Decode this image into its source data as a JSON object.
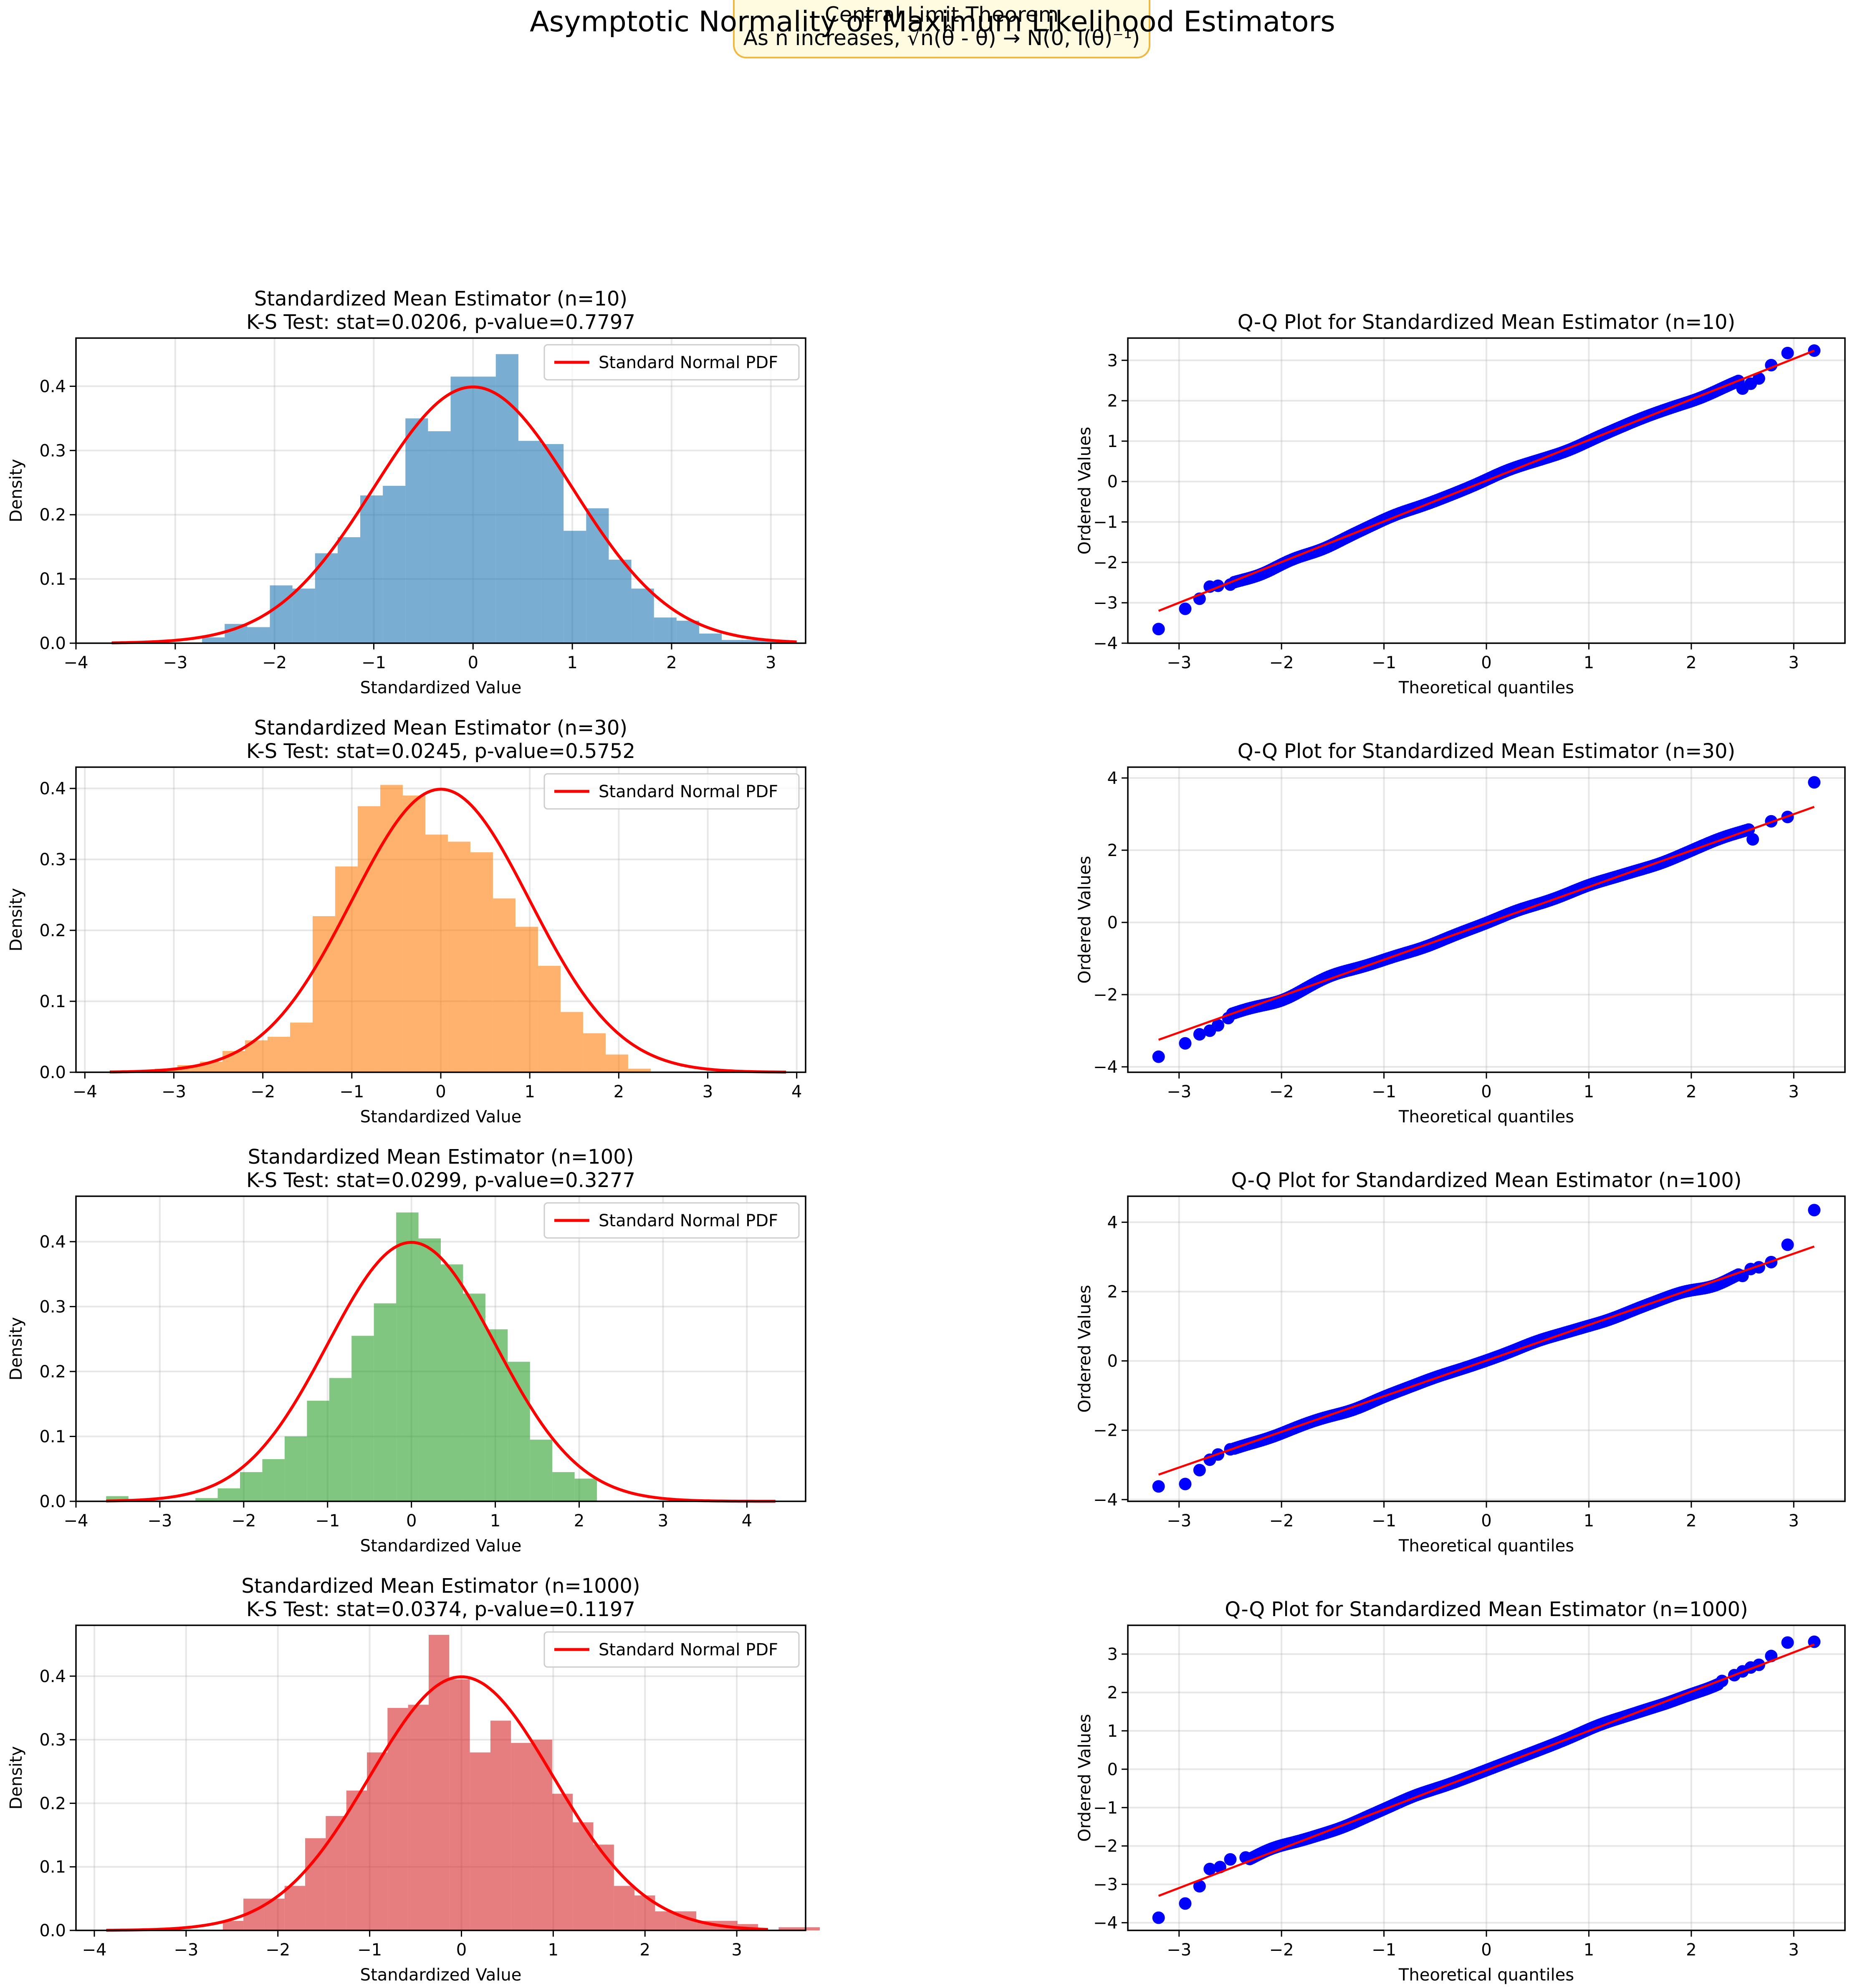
{
  "figure": {
    "suptitle": "Asymptotic Normality of Maximum Likelihood Estimators",
    "annotation_line1": "Central Limit Theorem",
    "annotation_line2": "As n increases, √n(θ̂ - θ) → N(0, I(θ)⁻¹)",
    "annotation_bg": "#fffbe0",
    "annotation_border": "#f0b840"
  },
  "chart_data": [
    {
      "type": "bar",
      "title_line1": "Standardized Mean Estimator (n=10)",
      "title_line2": "K-S Test: stat=0.0206, p-value=0.7797",
      "xlabel": "Standardized Value",
      "ylabel": "Density",
      "xlim": [
        -4.0,
        3.35
      ],
      "ylim": [
        0,
        0.475
      ],
      "xticks": [
        -4,
        -3,
        -2,
        -1,
        0,
        1,
        2,
        3
      ],
      "yticks": [
        0.0,
        0.1,
        0.2,
        0.3,
        0.4
      ],
      "bin_start": -3.64,
      "bin_width": 0.2276,
      "densities": [
        0.0,
        0.0,
        0.0,
        0.0,
        0.009,
        0.03,
        0.025,
        0.09,
        0.085,
        0.14,
        0.165,
        0.23,
        0.245,
        0.35,
        0.33,
        0.415,
        0.415,
        0.45,
        0.315,
        0.31,
        0.175,
        0.21,
        0.13,
        0.085,
        0.04,
        0.035,
        0.015,
        0.005,
        0.005,
        0.005
      ],
      "curve_range": [
        -3.64,
        3.26
      ],
      "bar_color": "#1f77b4",
      "curve_color": "#ff0000",
      "legend": "Standard Normal PDF",
      "legend_position": "upper right",
      "grid": true
    },
    {
      "type": "scatter",
      "title": "Q-Q Plot for Standardized Mean Estimator (n=10)",
      "xlabel": "Theoretical quantiles",
      "ylabel": "Ordered Values",
      "xlim": [
        -3.5,
        3.5
      ],
      "ylim": [
        -4.0,
        3.55
      ],
      "xticks": [
        -3,
        -2,
        -1,
        0,
        1,
        2,
        3
      ],
      "yticks": [
        -4,
        -3,
        -2,
        -1,
        0,
        1,
        2,
        3
      ],
      "fit_line": [
        [
          -3.2,
          -3.2
        ],
        [
          3.2,
          3.24
        ]
      ],
      "tail_low": [
        [
          -3.2,
          -3.65
        ],
        [
          -2.94,
          -3.15
        ],
        [
          -2.8,
          -2.9
        ],
        [
          -2.7,
          -2.6
        ],
        [
          -2.62,
          -2.58
        ],
        [
          -2.5,
          -2.55
        ]
      ],
      "tail_high": [
        [
          2.5,
          2.3
        ],
        [
          2.58,
          2.42
        ],
        [
          2.66,
          2.55
        ],
        [
          2.78,
          2.88
        ],
        [
          2.94,
          3.18
        ],
        [
          3.2,
          3.24
        ]
      ],
      "wiggles": [
        [
          -2.2,
          -0.1
        ],
        [
          -1.6,
          -0.08
        ],
        [
          -0.9,
          0.05
        ],
        [
          0.2,
          0.05
        ],
        [
          0.8,
          -0.05
        ],
        [
          1.5,
          0.02
        ],
        [
          2.1,
          -0.05
        ]
      ],
      "marker_color": "#0000ff",
      "line_color": "#ff0000",
      "grid": true
    },
    {
      "type": "bar",
      "title_line1": "Standardized Mean Estimator (n=30)",
      "title_line2": "K-S Test: stat=0.0245, p-value=0.5752",
      "xlabel": "Standardized Value",
      "ylabel": "Density",
      "xlim": [
        -4.1,
        4.1
      ],
      "ylim": [
        0,
        0.43
      ],
      "xticks": [
        -4,
        -3,
        -2,
        -1,
        0,
        1,
        2,
        3,
        4
      ],
      "yticks": [
        0.0,
        0.1,
        0.2,
        0.3,
        0.4
      ],
      "bin_start": -3.72,
      "bin_width": 0.2533,
      "densities": [
        0.0,
        0.0,
        0.005,
        0.01,
        0.015,
        0.03,
        0.045,
        0.05,
        0.07,
        0.22,
        0.29,
        0.375,
        0.405,
        0.39,
        0.335,
        0.325,
        0.31,
        0.245,
        0.205,
        0.15,
        0.085,
        0.055,
        0.025,
        0.005,
        0.0,
        0.0,
        0.0,
        0.0,
        0.0,
        0.002
      ],
      "curve_range": [
        -3.72,
        3.88
      ],
      "bar_color": "#ff7f0e",
      "curve_color": "#ff0000",
      "legend": "Standard Normal PDF",
      "legend_position": "upper right",
      "grid": true
    },
    {
      "type": "scatter",
      "title": "Q-Q Plot for Standardized Mean Estimator (n=30)",
      "xlabel": "Theoretical quantiles",
      "ylabel": "Ordered Values",
      "xlim": [
        -3.5,
        3.5
      ],
      "ylim": [
        -4.15,
        4.3
      ],
      "xticks": [
        -3,
        -2,
        -1,
        0,
        1,
        2,
        3
      ],
      "yticks": [
        -4,
        -2,
        0,
        2,
        4
      ],
      "fit_line": [
        [
          -3.2,
          -3.25
        ],
        [
          3.2,
          3.2
        ]
      ],
      "tail_low": [
        [
          -3.2,
          -3.72
        ],
        [
          -2.94,
          -3.35
        ],
        [
          -2.8,
          -3.1
        ],
        [
          -2.7,
          -3.0
        ],
        [
          -2.62,
          -2.85
        ],
        [
          -2.52,
          -2.65
        ]
      ],
      "tail_high": [
        [
          2.6,
          2.3
        ],
        [
          2.78,
          2.8
        ],
        [
          2.94,
          2.92
        ],
        [
          3.2,
          3.88
        ]
      ],
      "wiggles": [
        [
          -2.0,
          -0.12
        ],
        [
          -1.5,
          0.08
        ],
        [
          -0.6,
          -0.05
        ],
        [
          0.3,
          0.05
        ],
        [
          1.0,
          0.05
        ],
        [
          1.7,
          -0.05
        ],
        [
          2.3,
          0.05
        ]
      ],
      "marker_color": "#0000ff",
      "line_color": "#ff0000",
      "grid": true
    },
    {
      "type": "bar",
      "title_line1": "Standardized Mean Estimator (n=100)",
      "title_line2": "K-S Test: stat=0.0299, p-value=0.3277",
      "xlabel": "Standardized Value",
      "ylabel": "Density",
      "xlim": [
        -4.0,
        4.7
      ],
      "ylim": [
        0,
        0.47
      ],
      "xticks": [
        -4,
        -3,
        -2,
        -1,
        0,
        1,
        2,
        3,
        4
      ],
      "yticks": [
        0.0,
        0.1,
        0.2,
        0.3,
        0.4
      ],
      "bin_start": -3.64,
      "bin_width": 0.266,
      "densities": [
        0.008,
        0.0,
        0.0,
        0.0,
        0.005,
        0.02,
        0.045,
        0.065,
        0.1,
        0.155,
        0.19,
        0.255,
        0.305,
        0.445,
        0.405,
        0.365,
        0.32,
        0.265,
        0.215,
        0.095,
        0.045,
        0.035,
        0.0,
        0.0,
        0.0,
        0.0,
        0.0,
        0.0,
        0.0,
        0.0
      ],
      "curve_range": [
        -3.64,
        4.34
      ],
      "bar_color": "#2ca02c",
      "curve_color": "#ff0000",
      "legend": "Standard Normal PDF",
      "legend_position": "upper right",
      "grid": true
    },
    {
      "type": "scatter",
      "title": "Q-Q Plot for Standardized Mean Estimator (n=100)",
      "xlabel": "Theoretical quantiles",
      "ylabel": "Ordered Values",
      "xlim": [
        -3.5,
        3.5
      ],
      "ylim": [
        -4.05,
        4.75
      ],
      "xticks": [
        -3,
        -2,
        -1,
        0,
        1,
        2,
        3
      ],
      "yticks": [
        -4,
        -2,
        0,
        2,
        4
      ],
      "fit_line": [
        [
          -3.2,
          -3.28
        ],
        [
          3.2,
          3.3
        ]
      ],
      "tail_low": [
        [
          -3.2,
          -3.62
        ],
        [
          -2.94,
          -3.55
        ],
        [
          -2.8,
          -3.15
        ],
        [
          -2.7,
          -2.85
        ],
        [
          -2.62,
          -2.7
        ],
        [
          -2.5,
          -2.55
        ]
      ],
      "tail_high": [
        [
          2.5,
          2.45
        ],
        [
          2.58,
          2.65
        ],
        [
          2.66,
          2.7
        ],
        [
          2.78,
          2.85
        ],
        [
          2.94,
          3.35
        ],
        [
          3.2,
          4.35
        ]
      ],
      "wiggles": [
        [
          -2.1,
          -0.05
        ],
        [
          -1.3,
          -0.08
        ],
        [
          -0.5,
          0.03
        ],
        [
          0.5,
          0.05
        ],
        [
          1.2,
          -0.05
        ],
        [
          2.0,
          0.05
        ],
        [
          2.2,
          -0.15
        ]
      ],
      "marker_color": "#0000ff",
      "line_color": "#ff0000",
      "grid": true
    },
    {
      "type": "bar",
      "title_line1": "Standardized Mean Estimator (n=1000)",
      "title_line2": "K-S Test: stat=0.0374, p-value=0.1197",
      "xlabel": "Standardized Value",
      "ylabel": "Density",
      "xlim": [
        -4.2,
        3.75
      ],
      "ylim": [
        0,
        0.48
      ],
      "xticks": [
        -4,
        -3,
        -2,
        -1,
        0,
        1,
        2,
        3
      ],
      "yticks": [
        0.0,
        0.1,
        0.2,
        0.3,
        0.4
      ],
      "bin_start": -2.6,
      "bin_width": 0.2243,
      "densities": [
        0.015,
        0.05,
        0.05,
        0.07,
        0.145,
        0.18,
        0.22,
        0.28,
        0.35,
        0.355,
        0.465,
        0.395,
        0.28,
        0.33,
        0.295,
        0.3,
        0.215,
        0.17,
        0.135,
        0.07,
        0.055,
        0.03,
        0.03,
        0.015,
        0.015,
        0.01,
        0.0,
        0.005,
        0.005
      ],
      "curve_range": [
        -3.87,
        3.34
      ],
      "bar_color": "#d62728",
      "curve_color": "#ff0000",
      "legend": "Standard Normal PDF",
      "legend_position": "upper right",
      "grid": true
    },
    {
      "type": "scatter",
      "title": "Q-Q Plot for Standardized Mean Estimator (n=1000)",
      "xlabel": "Theoretical quantiles",
      "ylabel": "Ordered Values",
      "xlim": [
        -3.5,
        3.5
      ],
      "ylim": [
        -4.2,
        3.75
      ],
      "xticks": [
        -3,
        -2,
        -1,
        0,
        1,
        2,
        3
      ],
      "yticks": [
        -4,
        -3,
        -2,
        -1,
        0,
        1,
        2,
        3
      ],
      "fit_line": [
        [
          -3.2,
          -3.3
        ],
        [
          3.2,
          3.25
        ]
      ],
      "tail_low": [
        [
          -3.2,
          -3.87
        ],
        [
          -2.94,
          -3.5
        ],
        [
          -2.8,
          -3.05
        ],
        [
          -2.7,
          -2.6
        ],
        [
          -2.6,
          -2.55
        ],
        [
          -2.5,
          -2.35
        ],
        [
          -2.35,
          -2.3
        ]
      ],
      "tail_high": [
        [
          2.3,
          2.3
        ],
        [
          2.42,
          2.45
        ],
        [
          2.5,
          2.55
        ],
        [
          2.58,
          2.65
        ],
        [
          2.66,
          2.72
        ],
        [
          2.78,
          2.95
        ],
        [
          2.94,
          3.3
        ],
        [
          3.2,
          3.32
        ]
      ],
      "wiggles": [
        [
          -2.1,
          0.1
        ],
        [
          -1.4,
          -0.05
        ],
        [
          -0.7,
          0.05
        ],
        [
          0.3,
          0.0
        ],
        [
          1.1,
          0.05
        ],
        [
          1.8,
          -0.05
        ],
        [
          2.2,
          -0.08
        ]
      ],
      "marker_color": "#0000ff",
      "line_color": "#ff0000",
      "grid": true
    }
  ]
}
